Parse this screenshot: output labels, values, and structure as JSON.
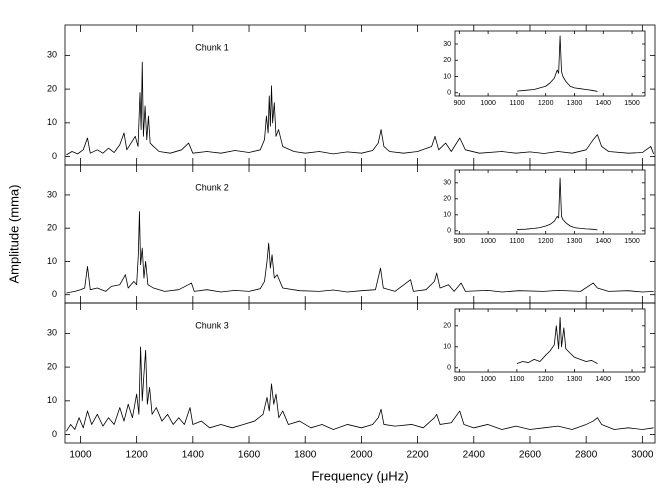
{
  "chart_data": [
    {
      "type": "line",
      "title": "Chunk 1",
      "color": "#000000",
      "xlim": [
        945,
        3045
      ],
      "ylim": [
        -2.5,
        39
      ],
      "yticks": [
        0,
        10,
        20,
        30
      ],
      "x": [
        950,
        970,
        990,
        1010,
        1025,
        1035,
        1060,
        1080,
        1100,
        1120,
        1140,
        1155,
        1165,
        1180,
        1195,
        1205,
        1212,
        1216,
        1220,
        1224,
        1230,
        1236,
        1242,
        1248,
        1260,
        1280,
        1320,
        1360,
        1385,
        1400,
        1450,
        1500,
        1550,
        1600,
        1640,
        1655,
        1662,
        1668,
        1672,
        1676,
        1680,
        1684,
        1690,
        1696,
        1705,
        1720,
        1760,
        1800,
        1850,
        1900,
        1950,
        2000,
        2040,
        2060,
        2070,
        2080,
        2100,
        2150,
        2200,
        2250,
        2262,
        2275,
        2300,
        2320,
        2350,
        2370,
        2420,
        2500,
        2550,
        2600,
        2650,
        2700,
        2750,
        2800,
        2825,
        2840,
        2855,
        2880,
        2950,
        3000,
        3030,
        3040
      ],
      "values": [
        0.5,
        1.5,
        0.8,
        2,
        5.5,
        1,
        2,
        1,
        2.5,
        1.2,
        3.5,
        7,
        2,
        4,
        6,
        3,
        19,
        8,
        28,
        6,
        15,
        5,
        12,
        4,
        3,
        1.5,
        1,
        2,
        4,
        1,
        1.5,
        1,
        1.8,
        1.2,
        2,
        5,
        12,
        7,
        18,
        9,
        21,
        10,
        16,
        6,
        8,
        3,
        1.5,
        1,
        1.5,
        0.8,
        1.4,
        1,
        1.8,
        4,
        8,
        3,
        1.5,
        1,
        1.5,
        3,
        6,
        2,
        4,
        1.5,
        5.5,
        2,
        1,
        1.5,
        1,
        1.4,
        0.9,
        1.5,
        1,
        2,
        5,
        6.5,
        3,
        1.5,
        1,
        1.2,
        3,
        0.8
      ]
    },
    {
      "type": "line",
      "color": "#000000",
      "xlim": [
        885,
        1545
      ],
      "ylim": [
        -2,
        38
      ],
      "yticks": [
        0,
        10,
        20,
        30
      ],
      "xticks": [
        900,
        1000,
        1100,
        1200,
        1300,
        1400,
        1500
      ],
      "x": [
        1100,
        1130,
        1160,
        1180,
        1200,
        1215,
        1230,
        1240,
        1245,
        1250,
        1255,
        1260,
        1270,
        1285,
        1300,
        1320,
        1340,
        1360,
        1380
      ],
      "values": [
        1,
        1.5,
        2,
        3,
        4,
        6,
        9,
        14,
        12,
        35,
        13,
        10,
        7,
        4,
        3,
        2.5,
        2,
        1.5,
        0.8
      ]
    },
    {
      "type": "line",
      "title": "Chunk 2",
      "color": "#000000",
      "xlim": [
        945,
        3045
      ],
      "ylim": [
        -2.5,
        39
      ],
      "yticks": [
        0,
        10,
        20,
        30
      ],
      "ylabel": "Amplitude (mma)",
      "x": [
        950,
        980,
        1000,
        1015,
        1025,
        1035,
        1060,
        1090,
        1110,
        1140,
        1160,
        1170,
        1190,
        1200,
        1206,
        1210,
        1214,
        1220,
        1226,
        1232,
        1240,
        1260,
        1300,
        1350,
        1395,
        1405,
        1450,
        1500,
        1550,
        1600,
        1640,
        1655,
        1664,
        1670,
        1676,
        1682,
        1690,
        1700,
        1720,
        1780,
        1850,
        1900,
        1950,
        2000,
        2050,
        2068,
        2078,
        2120,
        2175,
        2185,
        2230,
        2260,
        2268,
        2280,
        2310,
        2330,
        2355,
        2370,
        2450,
        2500,
        2560,
        2650,
        2700,
        2780,
        2825,
        2840,
        2880,
        2950,
        3000,
        3040
      ],
      "values": [
        0.5,
        1,
        1.5,
        2,
        8.5,
        1.5,
        2,
        1,
        2.5,
        3,
        6,
        2,
        4,
        3,
        12,
        25,
        9,
        14,
        5,
        10,
        3,
        2,
        1,
        1.5,
        3.5,
        1,
        1.5,
        0.8,
        1.3,
        1,
        1.8,
        4,
        10,
        15.5,
        8,
        12,
        5,
        6,
        2,
        1.2,
        1,
        1.4,
        0.8,
        1.2,
        1.5,
        8,
        2,
        1,
        4.5,
        1,
        1.5,
        4,
        6.5,
        2,
        3,
        1,
        3.5,
        1,
        1.3,
        0.8,
        1.2,
        1,
        1.3,
        1,
        3.5,
        2,
        1,
        1.2,
        0.8,
        1
      ]
    },
    {
      "type": "line",
      "color": "#000000",
      "xlim": [
        885,
        1545
      ],
      "ylim": [
        -2,
        38
      ],
      "yticks": [
        0,
        10,
        20,
        30
      ],
      "xticks": [
        900,
        1000,
        1100,
        1200,
        1300,
        1400,
        1500
      ],
      "x": [
        1100,
        1130,
        1160,
        1180,
        1200,
        1215,
        1230,
        1240,
        1245,
        1250,
        1255,
        1260,
        1270,
        1285,
        1300,
        1320,
        1340,
        1360,
        1380
      ],
      "values": [
        0.8,
        1,
        1.5,
        2,
        3,
        4,
        6,
        9,
        8,
        33,
        9,
        7,
        5,
        3,
        2,
        1.5,
        1.2,
        1,
        0.6
      ]
    },
    {
      "type": "line",
      "title": "Chunk 3",
      "color": "#000000",
      "xlim": [
        945,
        3045
      ],
      "ylim": [
        -2.5,
        39
      ],
      "yticks": [
        0,
        10,
        20,
        30
      ],
      "xticks": [
        1000,
        1200,
        1400,
        1600,
        1800,
        2000,
        2200,
        2400,
        2600,
        2800,
        3000
      ],
      "xlabel": "Frequency (μHz)",
      "x": [
        950,
        965,
        980,
        995,
        1010,
        1025,
        1040,
        1060,
        1080,
        1100,
        1120,
        1140,
        1155,
        1170,
        1185,
        1200,
        1208,
        1214,
        1220,
        1226,
        1232,
        1238,
        1246,
        1255,
        1270,
        1290,
        1310,
        1330,
        1350,
        1370,
        1390,
        1400,
        1430,
        1460,
        1500,
        1540,
        1580,
        1620,
        1650,
        1664,
        1672,
        1680,
        1688,
        1696,
        1706,
        1720,
        1740,
        1780,
        1820,
        1860,
        1900,
        1950,
        2000,
        2040,
        2060,
        2070,
        2080,
        2120,
        2180,
        2220,
        2260,
        2268,
        2280,
        2320,
        2350,
        2365,
        2400,
        2450,
        2500,
        2550,
        2600,
        2650,
        2700,
        2750,
        2800,
        2825,
        2840,
        2855,
        2900,
        2950,
        3000,
        3040
      ],
      "values": [
        1,
        3,
        1.5,
        5,
        2,
        7,
        3,
        6,
        2.5,
        5,
        3,
        8,
        4,
        9,
        5,
        12,
        6,
        26,
        10,
        18,
        25,
        9,
        14,
        6,
        8,
        4,
        6,
        3,
        5,
        3,
        8,
        3,
        4,
        2,
        3,
        2,
        3,
        4,
        6,
        11,
        7,
        15,
        9,
        12,
        5,
        7,
        3,
        4,
        2,
        3,
        1.5,
        3,
        2,
        3,
        5,
        7.5,
        3,
        2.5,
        3,
        2,
        5,
        6,
        3,
        3.5,
        7,
        3,
        2,
        3,
        1.5,
        2.5,
        1.5,
        2,
        2.5,
        1.5,
        3,
        4,
        5,
        3,
        1.5,
        2,
        1.5,
        2
      ]
    },
    {
      "type": "line",
      "color": "#000000",
      "xlim": [
        885,
        1545
      ],
      "ylim": [
        -2,
        28
      ],
      "yticks": [
        0,
        10,
        20
      ],
      "xticks": [
        900,
        1000,
        1100,
        1200,
        1300,
        1400,
        1500
      ],
      "x": [
        1100,
        1120,
        1140,
        1160,
        1180,
        1200,
        1215,
        1230,
        1237,
        1245,
        1250,
        1255,
        1263,
        1270,
        1285,
        1300,
        1320,
        1340,
        1360,
        1380
      ],
      "values": [
        2,
        3,
        2.5,
        4,
        3,
        6,
        8,
        11,
        20,
        9,
        24,
        10,
        19,
        9,
        7,
        5,
        4,
        3,
        3.5,
        2
      ]
    }
  ]
}
